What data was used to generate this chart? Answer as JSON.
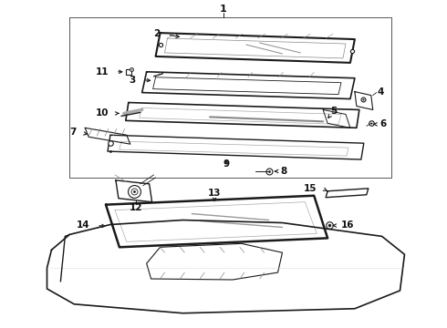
{
  "bg_color": "#ffffff",
  "line_color": "#1a1a1a",
  "label_color": "#111111",
  "fig_w": 4.9,
  "fig_h": 3.6,
  "dpi": 100
}
